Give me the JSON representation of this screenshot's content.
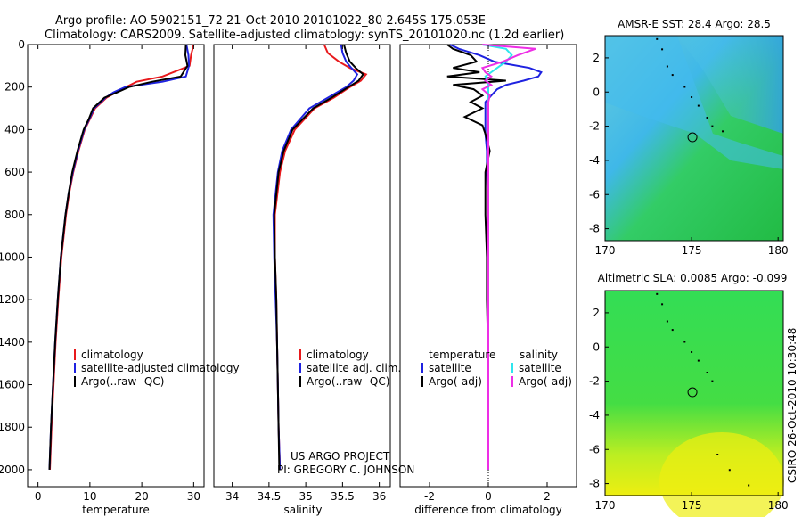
{
  "title_line1": "Argo profile: AO 5902151_72 21-Oct-2010 20101022_80 2.645S 175.053E",
  "title_line2": "Climatology: CARS2009. Satellite-adjusted climatology: synTS_20101020.nc (1.2d earlier)",
  "credit": "CSIRO 26-Oct-2010 10:30:48",
  "project_line1": "US ARGO PROJECT",
  "project_line2": "PI: GREGORY C. JOHNSON",
  "colors": {
    "climatology": "#e8191c",
    "satellite": "#1e22e0",
    "argo": "#000000",
    "sat_sal": "#2ee6ee",
    "argo_sal": "#ee2ee6"
  },
  "chart_data": [
    {
      "type": "line",
      "panel": "temperature",
      "xlabel": "temperature",
      "ylabel": "",
      "xlim": [
        -2,
        32
      ],
      "ylim": [
        2080,
        0
      ],
      "ydir": "reverse",
      "xticks": [
        0,
        10,
        20,
        30
      ],
      "yticks": [
        0,
        200,
        400,
        600,
        800,
        1000,
        1200,
        1400,
        1600,
        1800,
        2000
      ],
      "legend": [
        "climatology",
        "satellite-adjusted climatology",
        "Argo(..raw -QC)"
      ],
      "depth": [
        0,
        50,
        100,
        150,
        175,
        200,
        225,
        250,
        300,
        350,
        400,
        500,
        600,
        700,
        800,
        1000,
        1200,
        1400,
        1600,
        1800,
        2000
      ],
      "series": [
        {
          "name": "climatology",
          "color_key": "climatology",
          "values": [
            30.0,
            29.5,
            29.2,
            24.0,
            19.0,
            17.0,
            15.0,
            13.2,
            11.0,
            10.0,
            9.0,
            7.8,
            6.8,
            6.0,
            5.4,
            4.5,
            3.9,
            3.4,
            3.0,
            2.6,
            2.3
          ]
        },
        {
          "name": "satellite-adjusted climatology",
          "color_key": "satellite",
          "values": [
            28.6,
            29.0,
            29.1,
            28.5,
            24.0,
            16.8,
            14.5,
            13.0,
            10.8,
            9.9,
            8.9,
            7.7,
            6.7,
            5.9,
            5.3,
            4.4,
            3.8,
            3.3,
            2.9,
            2.5,
            2.2
          ]
        },
        {
          "name": "Argo(..raw -QC)",
          "color_key": "argo",
          "values": [
            28.5,
            28.4,
            28.8,
            27.5,
            22.0,
            17.5,
            15.2,
            12.8,
            10.6,
            9.8,
            8.8,
            7.6,
            6.6,
            5.9,
            5.3,
            4.4,
            3.8,
            3.3,
            2.9,
            2.5,
            2.2
          ]
        }
      ]
    },
    {
      "type": "line",
      "panel": "salinity",
      "xlabel": "salinity",
      "xlim": [
        33.75,
        36.15
      ],
      "ylim": [
        2080,
        0
      ],
      "ydir": "reverse",
      "xticks": [
        34,
        34.5,
        35,
        35.5,
        36
      ],
      "xticklabels": [
        "34",
        "34.5",
        "35",
        "35.5",
        "36"
      ],
      "legend": [
        "climatology",
        "satellite adj. clim.",
        "Argo(..raw -QC)"
      ],
      "depth": [
        0,
        40,
        80,
        110,
        140,
        170,
        200,
        250,
        300,
        400,
        500,
        600,
        800,
        1000,
        1200,
        1400,
        1600,
        1800,
        2000
      ],
      "series": [
        {
          "name": "climatology",
          "color_key": "climatology",
          "values": [
            35.25,
            35.3,
            35.45,
            35.6,
            35.82,
            35.75,
            35.6,
            35.38,
            35.12,
            34.85,
            34.72,
            34.65,
            34.58,
            34.58,
            34.6,
            34.61,
            34.62,
            34.63,
            34.65
          ]
        },
        {
          "name": "satellite adj. clim.",
          "color_key": "satellite",
          "values": [
            35.48,
            35.5,
            35.55,
            35.62,
            35.7,
            35.65,
            35.55,
            35.3,
            35.05,
            34.8,
            34.68,
            34.62,
            34.56,
            34.57,
            34.59,
            34.61,
            34.62,
            34.63,
            34.65
          ]
        },
        {
          "name": "Argo(..raw -QC)",
          "color_key": "argo",
          "values": [
            35.52,
            35.55,
            35.6,
            35.68,
            35.78,
            35.72,
            35.58,
            35.35,
            35.1,
            34.82,
            34.7,
            34.63,
            34.57,
            34.58,
            34.6,
            34.61,
            34.62,
            34.63,
            34.64
          ]
        }
      ]
    },
    {
      "type": "line",
      "panel": "difference",
      "xlabel": "difference from climatology",
      "xlim": [
        -3,
        3
      ],
      "ylim": [
        2080,
        0
      ],
      "ydir": "reverse",
      "xticks": [
        -2,
        0,
        2
      ],
      "legend_left_title": "temperature",
      "legend_right_title": "salinity",
      "legend": [
        "satellite",
        "Argo(-adj)",
        "satellite",
        "Argo(-adj)"
      ],
      "depth": [
        0,
        20,
        50,
        80,
        110,
        130,
        150,
        170,
        190,
        210,
        240,
        270,
        300,
        340,
        380,
        420,
        500,
        600,
        800,
        1000,
        1200,
        1500,
        1800,
        2000
      ],
      "series": [
        {
          "name": "temperature satellite",
          "color_key": "satellite",
          "values": [
            -1.3,
            -1.0,
            -0.3,
            0.2,
            1.4,
            1.8,
            1.7,
            1.2,
            0.6,
            0.3,
            0.1,
            -0.1,
            -0.1,
            -0.1,
            -0.1,
            -0.1,
            -0.05,
            -0.05,
            0,
            0,
            0,
            0,
            0,
            0
          ]
        },
        {
          "name": "temperature Argo(-adj)",
          "color_key": "argo",
          "values": [
            -1.4,
            -1.2,
            -0.6,
            -0.4,
            -1.2,
            -0.3,
            -1.4,
            0.6,
            -1.2,
            -0.5,
            -0.2,
            -0.6,
            -0.2,
            -0.8,
            -0.2,
            -0.1,
            0.05,
            -0.1,
            -0.1,
            -0.05,
            -0.05,
            0,
            0,
            0
          ]
        },
        {
          "name": "salinity satellite",
          "color_key": "sat_sal",
          "values": [
            -0.2,
            0.6,
            0.8,
            0.6,
            0.3,
            0.1,
            -0.1,
            -0.05,
            0,
            0,
            0,
            0,
            0,
            0,
            0,
            0,
            0,
            0,
            0,
            0,
            0,
            0,
            0,
            0
          ]
        },
        {
          "name": "salinity Argo(-adj)",
          "color_key": "argo_sal",
          "values": [
            -0.2,
            1.6,
            1.0,
            0.5,
            -0.2,
            -0.1,
            0.1,
            -0.1,
            0.1,
            -0.2,
            0.05,
            0,
            0,
            0,
            0,
            0,
            0,
            0,
            0,
            0,
            0,
            0,
            0,
            0
          ]
        }
      ]
    },
    {
      "type": "heatmap",
      "panel": "sst_map",
      "title": "AMSR-E SST: 28.4  Argo: 28.5",
      "xlim": [
        170,
        180.3
      ],
      "ylim": [
        -8.7,
        3.3
      ],
      "xticks": [
        170,
        175,
        180
      ],
      "yticks": [
        -8,
        -6,
        -4,
        -2,
        0,
        2
      ],
      "marker": {
        "lon": 175.05,
        "lat": -2.65
      },
      "track": [
        [
          173.0,
          3.1
        ],
        [
          173.3,
          2.5
        ],
        [
          173.6,
          1.5
        ],
        [
          173.9,
          1.0
        ],
        [
          174.6,
          0.3
        ],
        [
          175.0,
          -0.3
        ],
        [
          175.4,
          -0.8
        ],
        [
          175.9,
          -1.5
        ],
        [
          176.2,
          -2.0
        ],
        [
          176.8,
          -2.3
        ]
      ]
    },
    {
      "type": "heatmap",
      "panel": "sla_map",
      "title": "Altimetric SLA: 0.0085  Argo: -0.099",
      "xlim": [
        170,
        180.3
      ],
      "ylim": [
        -8.7,
        3.3
      ],
      "xticks": [
        170,
        175,
        180
      ],
      "yticks": [
        -8,
        -6,
        -4,
        -2,
        0,
        2
      ],
      "marker": {
        "lon": 175.05,
        "lat": -2.65
      },
      "track": [
        [
          173.0,
          3.1
        ],
        [
          173.3,
          2.5
        ],
        [
          173.6,
          1.5
        ],
        [
          173.9,
          1.0
        ],
        [
          174.6,
          0.3
        ],
        [
          175.0,
          -0.3
        ],
        [
          175.4,
          -0.8
        ],
        [
          175.9,
          -1.5
        ],
        [
          176.2,
          -2.0
        ],
        [
          176.5,
          -6.3
        ],
        [
          177.2,
          -7.2
        ],
        [
          178.3,
          -8.1
        ]
      ]
    }
  ]
}
